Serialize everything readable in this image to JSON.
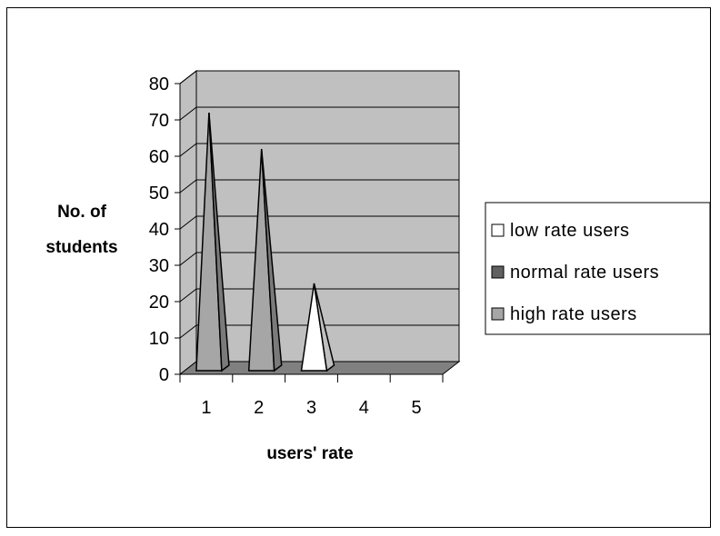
{
  "chart_data": {
    "type": "bar",
    "style": "3d-pyramid",
    "categories": [
      "1",
      "2",
      "3",
      "4",
      "5"
    ],
    "series": [
      {
        "name": "low rate users",
        "values": [
          0,
          0,
          25,
          0,
          0
        ],
        "color": "#ffffff"
      },
      {
        "name": "normal rate users",
        "values": [
          0,
          0,
          0,
          0,
          0
        ],
        "color": "#606060"
      },
      {
        "name": "high rate users",
        "values": [
          72,
          62,
          0,
          0,
          0
        ],
        "color": "#a6a6a6"
      }
    ],
    "ylim": [
      0,
      80
    ],
    "yticks": [
      "0",
      "10",
      "20",
      "30",
      "40",
      "50",
      "60",
      "70",
      "80"
    ],
    "xlabel": "users' rate",
    "ylabel_line1": "No. of",
    "ylabel_line2": "students",
    "grid": true,
    "legend_position": "right",
    "wall_color": "#c0c0c0",
    "floor_color": "#808080"
  }
}
